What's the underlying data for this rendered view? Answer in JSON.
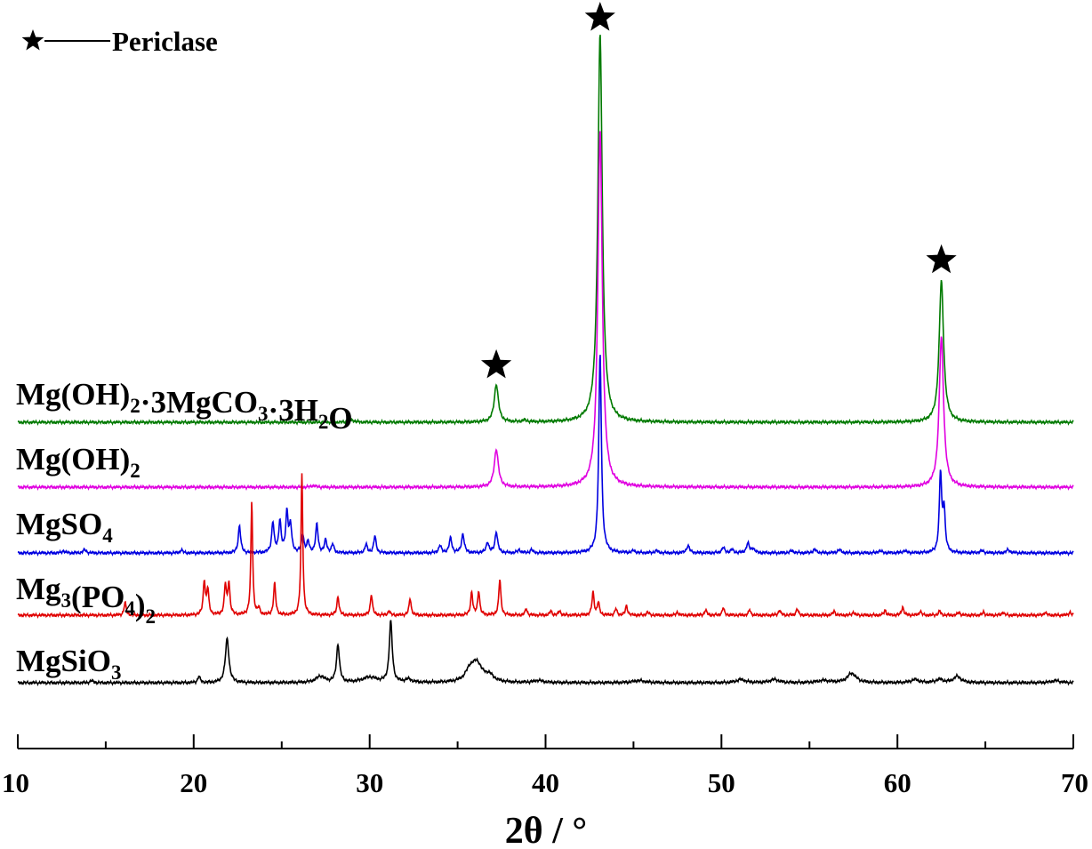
{
  "chart_data": {
    "type": "line",
    "xlabel": "2θ / °",
    "xlim": [
      10,
      70
    ],
    "x_ticks": [
      "10",
      "20",
      "30",
      "40",
      "50",
      "60",
      "70"
    ],
    "legend": {
      "marker": "star",
      "label": "Periclase",
      "placement": "top-left"
    },
    "star_annotations": [
      {
        "x": 37.2,
        "series": "Mg(OH)2·3MgCO3·3H2O"
      },
      {
        "x": 43.1,
        "series": "Mg(OH)2·3MgCO3·3H2O"
      },
      {
        "x": 62.5,
        "series": "Mg(OH)2·3MgCO3·3H2O"
      }
    ],
    "series": [
      {
        "name": "Mg(OH)2·3MgCO3·3H2O",
        "label_parts": [
          {
            "t": "Mg(OH)",
            "sub": false
          },
          {
            "t": "2",
            "sub": true
          },
          {
            "t": "·3MgCO",
            "sub": false
          },
          {
            "t": "3",
            "sub": true
          },
          {
            "t": "·3H",
            "sub": false
          },
          {
            "t": "2",
            "sub": true
          },
          {
            "t": "O",
            "sub": false
          }
        ],
        "color": "#007a00",
        "peaks": [
          [
            29.0,
            0.2,
            0.18
          ],
          [
            37.2,
            3.6,
            0.14
          ],
          [
            38.8,
            0.15,
            0.15
          ],
          [
            43.1,
            37.0,
            0.15
          ],
          [
            62.5,
            13.5,
            0.15
          ]
        ]
      },
      {
        "name": "Mg(OH)2",
        "label_parts": [
          {
            "t": "Mg(OH)",
            "sub": false
          },
          {
            "t": "2",
            "sub": true
          }
        ],
        "color": "#e000e0",
        "peaks": [
          [
            26.8,
            0.15,
            0.15
          ],
          [
            37.2,
            3.6,
            0.14
          ],
          [
            43.1,
            34.0,
            0.15
          ],
          [
            62.5,
            14.3,
            0.15
          ]
        ]
      },
      {
        "name": "MgSO4",
        "label_parts": [
          {
            "t": "MgSO",
            "sub": false
          },
          {
            "t": "4",
            "sub": true
          }
        ],
        "color": "#0000e0",
        "peaks": [
          [
            12.6,
            0.2,
            0.1
          ],
          [
            13.8,
            0.3,
            0.1
          ],
          [
            19.3,
            0.3,
            0.08
          ],
          [
            22.6,
            2.6,
            0.08
          ],
          [
            24.5,
            2.9,
            0.08
          ],
          [
            24.9,
            3.0,
            0.08
          ],
          [
            25.3,
            3.8,
            0.08
          ],
          [
            25.5,
            2.5,
            0.08
          ],
          [
            26.2,
            1.7,
            0.08
          ],
          [
            26.5,
            1.0,
            0.08
          ],
          [
            27.0,
            2.7,
            0.08
          ],
          [
            27.5,
            1.2,
            0.08
          ],
          [
            27.9,
            0.8,
            0.08
          ],
          [
            29.8,
            0.8,
            0.08
          ],
          [
            30.3,
            1.6,
            0.08
          ],
          [
            34.0,
            0.7,
            0.09
          ],
          [
            34.6,
            1.4,
            0.09
          ],
          [
            35.3,
            1.8,
            0.09
          ],
          [
            36.7,
            1.0,
            0.09
          ],
          [
            37.2,
            2.0,
            0.09
          ],
          [
            38.5,
            0.3,
            0.09
          ],
          [
            39.2,
            0.3,
            0.09
          ],
          [
            43.1,
            19.0,
            0.09
          ],
          [
            45.0,
            0.2,
            0.1
          ],
          [
            46.3,
            0.2,
            0.1
          ],
          [
            48.1,
            0.7,
            0.1
          ],
          [
            50.1,
            0.5,
            0.1
          ],
          [
            50.6,
            0.3,
            0.1
          ],
          [
            51.5,
            0.9,
            0.1
          ],
          [
            51.8,
            0.4,
            0.1
          ],
          [
            54.0,
            0.2,
            0.12
          ],
          [
            55.3,
            0.3,
            0.12
          ],
          [
            56.7,
            0.3,
            0.12
          ],
          [
            59.0,
            0.2,
            0.12
          ],
          [
            60.4,
            0.2,
            0.12
          ],
          [
            62.45,
            7.5,
            0.08
          ],
          [
            62.65,
            4.0,
            0.08
          ],
          [
            64.8,
            0.2,
            0.12
          ],
          [
            66.3,
            0.3,
            0.12
          ]
        ]
      },
      {
        "name": "Mg3(PO4)2",
        "label_parts": [
          {
            "t": "Mg",
            "sub": false
          },
          {
            "t": "3",
            "sub": true
          },
          {
            "t": "(PO",
            "sub": false
          },
          {
            "t": "4",
            "sub": true
          },
          {
            "t": ")",
            "sub": false
          },
          {
            "t": "2",
            "sub": true
          }
        ],
        "color": "#e00000",
        "peaks": [
          [
            16.1,
            1.2,
            0.07
          ],
          [
            20.6,
            3.2,
            0.07
          ],
          [
            20.8,
            2.4,
            0.07
          ],
          [
            21.8,
            2.8,
            0.07
          ],
          [
            22.0,
            3.0,
            0.07
          ],
          [
            23.3,
            10.8,
            0.06
          ],
          [
            23.7,
            0.6,
            0.07
          ],
          [
            24.6,
            3.0,
            0.07
          ],
          [
            26.15,
            13.5,
            0.06
          ],
          [
            28.2,
            1.8,
            0.07
          ],
          [
            30.1,
            2.0,
            0.07
          ],
          [
            31.1,
            0.4,
            0.07
          ],
          [
            32.3,
            1.6,
            0.07
          ],
          [
            35.8,
            2.2,
            0.07
          ],
          [
            36.2,
            2.3,
            0.07
          ],
          [
            37.4,
            3.4,
            0.07
          ],
          [
            38.9,
            0.6,
            0.07
          ],
          [
            40.3,
            0.4,
            0.07
          ],
          [
            40.8,
            0.4,
            0.07
          ],
          [
            42.7,
            2.2,
            0.07
          ],
          [
            43.0,
            1.2,
            0.07
          ],
          [
            44.0,
            0.6,
            0.07
          ],
          [
            44.6,
            0.9,
            0.07
          ],
          [
            45.8,
            0.3,
            0.07
          ],
          [
            47.5,
            0.3,
            0.07
          ],
          [
            49.1,
            0.5,
            0.07
          ],
          [
            50.1,
            0.7,
            0.07
          ],
          [
            51.6,
            0.5,
            0.07
          ],
          [
            53.3,
            0.5,
            0.07
          ],
          [
            54.3,
            0.6,
            0.07
          ],
          [
            56.4,
            0.4,
            0.07
          ],
          [
            57.5,
            0.3,
            0.07
          ],
          [
            59.3,
            0.5,
            0.07
          ],
          [
            60.3,
            0.8,
            0.07
          ],
          [
            61.3,
            0.4,
            0.07
          ],
          [
            62.4,
            0.4,
            0.07
          ],
          [
            63.5,
            0.3,
            0.07
          ],
          [
            64.9,
            0.3,
            0.07
          ],
          [
            66.0,
            0.3,
            0.07
          ],
          [
            68.4,
            0.3,
            0.07
          ],
          [
            69.8,
            0.3,
            0.07
          ]
        ]
      },
      {
        "name": "MgSiO3",
        "label_parts": [
          {
            "t": "MgSiO",
            "sub": false
          },
          {
            "t": "3",
            "sub": true
          }
        ],
        "color": "#000000",
        "peaks": [
          [
            14.2,
            0.2,
            0.1
          ],
          [
            20.3,
            0.6,
            0.08
          ],
          [
            21.9,
            4.2,
            0.12
          ],
          [
            27.2,
            0.6,
            0.3
          ],
          [
            28.2,
            3.6,
            0.1
          ],
          [
            30.0,
            0.5,
            0.5
          ],
          [
            31.2,
            5.8,
            0.1
          ],
          [
            32.2,
            0.3,
            0.2
          ],
          [
            35.7,
            1.0,
            0.3
          ],
          [
            36.1,
            1.7,
            0.35
          ],
          [
            36.8,
            0.6,
            0.3
          ],
          [
            39.6,
            0.2,
            0.3
          ],
          [
            45.3,
            0.2,
            0.4
          ],
          [
            51.1,
            0.3,
            0.3
          ],
          [
            53.0,
            0.3,
            0.3
          ],
          [
            55.8,
            0.2,
            0.4
          ],
          [
            57.4,
            0.9,
            0.3
          ],
          [
            61.0,
            0.3,
            0.25
          ],
          [
            62.4,
            0.3,
            0.25
          ],
          [
            63.4,
            0.6,
            0.25
          ],
          [
            69.0,
            0.2,
            0.3
          ]
        ]
      }
    ]
  }
}
